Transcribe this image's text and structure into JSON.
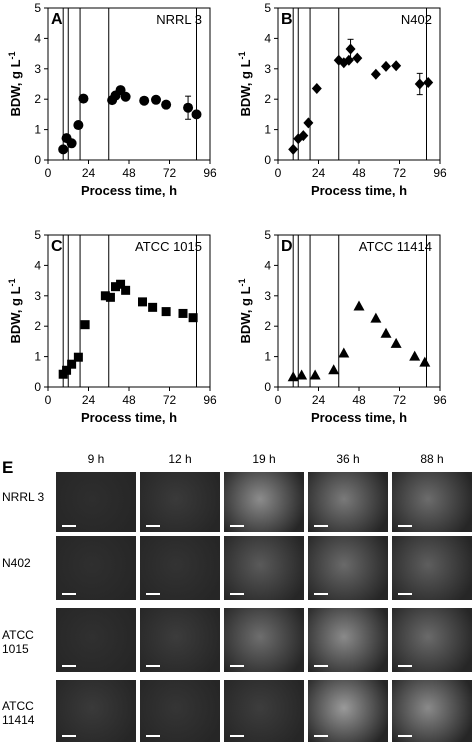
{
  "charts_style": {
    "marker_color": "#000000",
    "line_color": "#000000"
  },
  "chart_data": [
    {
      "type": "scatter",
      "panel": "A",
      "strain": "NRRL 3",
      "marker": "circle",
      "xlabel": "Process time, h",
      "ylabel": "BDW, g L",
      "ylabel_sup": "-1",
      "xlim": [
        0,
        96
      ],
      "ylim": [
        0,
        5
      ],
      "xticks": [
        0,
        24,
        48,
        72,
        96
      ],
      "yticks": [
        0,
        1,
        2,
        3,
        4,
        5
      ],
      "vlines": [
        9,
        12,
        19,
        36,
        88
      ],
      "x": [
        9,
        11,
        14,
        18,
        21,
        38,
        40,
        43,
        46,
        57,
        64,
        70,
        83,
        88
      ],
      "y": [
        0.35,
        0.72,
        0.55,
        1.15,
        2.02,
        1.97,
        2.12,
        2.3,
        2.08,
        1.95,
        1.98,
        1.82,
        1.72,
        1.5
      ],
      "err": [
        0,
        0,
        0,
        0,
        0,
        0,
        0,
        0,
        0,
        0,
        0,
        0,
        0.38,
        0
      ]
    },
    {
      "type": "scatter",
      "panel": "B",
      "strain": "N402",
      "marker": "diamond",
      "xlabel": "Process time, h",
      "ylabel": "BDW, g L",
      "ylabel_sup": "-1",
      "xlim": [
        0,
        96
      ],
      "ylim": [
        0,
        5
      ],
      "xticks": [
        0,
        24,
        48,
        72,
        96
      ],
      "yticks": [
        0,
        1,
        2,
        3,
        4,
        5
      ],
      "vlines": [
        9,
        12,
        19,
        36,
        88
      ],
      "x": [
        9,
        12,
        15,
        18,
        23,
        36,
        39,
        42,
        43,
        47,
        58,
        64,
        70,
        84,
        89
      ],
      "y": [
        0.35,
        0.7,
        0.8,
        1.22,
        2.35,
        3.28,
        3.2,
        3.28,
        3.65,
        3.35,
        2.82,
        3.08,
        3.1,
        2.5,
        2.55
      ],
      "err": [
        0,
        0,
        0,
        0,
        0,
        0,
        0,
        0,
        0.32,
        0,
        0,
        0,
        0,
        0.35,
        0
      ]
    },
    {
      "type": "scatter",
      "panel": "C",
      "strain": "ATCC 1015",
      "marker": "square",
      "xlabel": "Process time, h",
      "ylabel": "BDW, g L",
      "ylabel_sup": "-1",
      "xlim": [
        0,
        96
      ],
      "ylim": [
        0,
        5
      ],
      "xticks": [
        0,
        24,
        48,
        72,
        96
      ],
      "yticks": [
        0,
        1,
        2,
        3,
        4,
        5
      ],
      "vlines": [
        9,
        12,
        19,
        36,
        88
      ],
      "x": [
        9,
        11,
        14,
        18,
        22,
        34,
        37,
        40,
        43,
        46,
        56,
        62,
        70,
        80,
        86
      ],
      "y": [
        0.42,
        0.55,
        0.75,
        0.98,
        2.05,
        3.0,
        2.95,
        3.3,
        3.38,
        3.18,
        2.8,
        2.62,
        2.48,
        2.42,
        2.28
      ],
      "err": [
        0,
        0,
        0,
        0,
        0,
        0,
        0,
        0,
        0,
        0,
        0,
        0,
        0,
        0,
        0
      ]
    },
    {
      "type": "scatter",
      "panel": "D",
      "strain": "ATCC 11414",
      "marker": "triangle",
      "xlabel": "Process time, h",
      "ylabel": "BDW, g L",
      "ylabel_sup": "-1",
      "xlim": [
        0,
        96
      ],
      "ylim": [
        0,
        5
      ],
      "xticks": [
        0,
        24,
        48,
        72,
        96
      ],
      "yticks": [
        0,
        1,
        2,
        3,
        4,
        5
      ],
      "vlines": [
        9,
        12,
        19,
        36,
        88
      ],
      "x": [
        9,
        14,
        22,
        33,
        39,
        48,
        58,
        64,
        70,
        81,
        87
      ],
      "y": [
        0.32,
        0.38,
        0.38,
        0.55,
        1.1,
        2.65,
        2.25,
        1.75,
        1.42,
        1.0,
        0.8
      ],
      "err": [
        0,
        0,
        0,
        0,
        0,
        0,
        0,
        0,
        0,
        0,
        0
      ]
    }
  ],
  "panelE": {
    "letter": "E",
    "columns": [
      "9 h",
      "12 h",
      "19 h",
      "36 h",
      "88 h"
    ],
    "rows": [
      {
        "label1": "NRRL 3",
        "label2": ""
      },
      {
        "label1": "N402",
        "label2": ""
      },
      {
        "label1": "ATCC",
        "label2": "1015"
      },
      {
        "label1": "ATCC",
        "label2": "11414"
      }
    ]
  }
}
